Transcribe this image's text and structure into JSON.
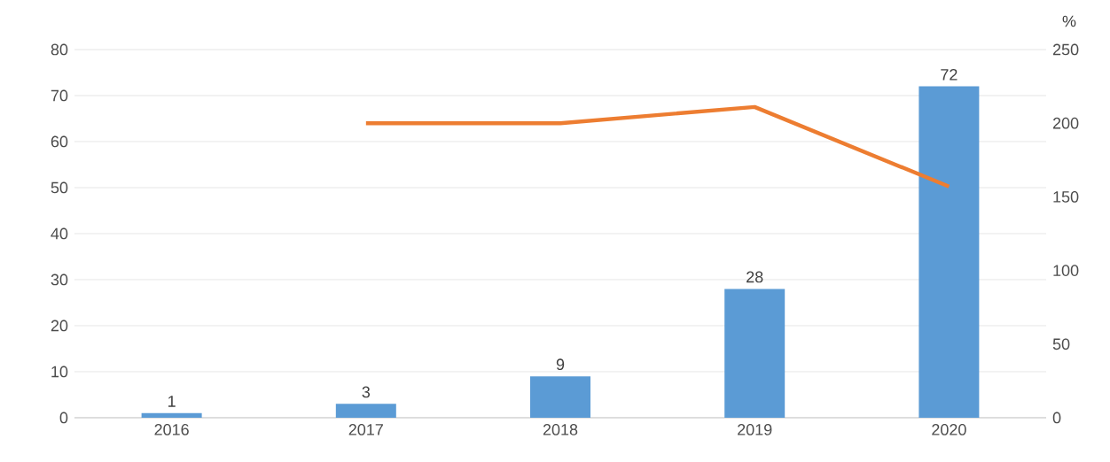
{
  "chart_data": {
    "type": "bar",
    "categories": [
      "2016",
      "2017",
      "2018",
      "2019",
      "2020"
    ],
    "series": [
      {
        "color": "#5b9bd5",
        "values": [
          1,
          3,
          9,
          28,
          72
        ],
        "value_labels": [
          "1",
          "3",
          "9",
          "28",
          "72"
        ]
      },
      {
        "type": "line",
        "axis": "y2",
        "color": "#ed7d31",
        "values": [
          null,
          200,
          200,
          211,
          157
        ]
      }
    ],
    "ylim": [
      0,
      80
    ],
    "yticks": [
      0,
      10,
      20,
      30,
      40,
      50,
      60,
      70,
      80
    ],
    "y2lim": [
      0,
      250
    ],
    "y2ticks": [
      0,
      50,
      100,
      150,
      200,
      250
    ],
    "y2label": "%",
    "grid": "y",
    "marker": "none",
    "line_style": "solid"
  }
}
